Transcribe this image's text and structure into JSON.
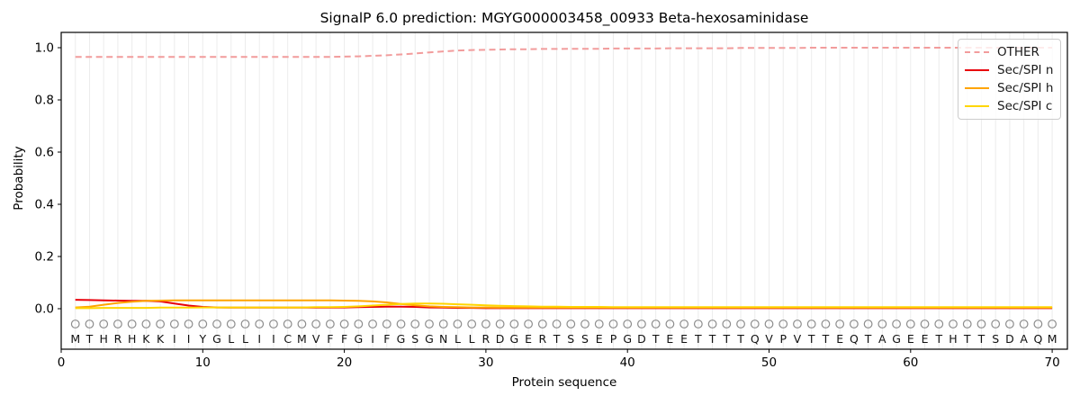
{
  "chart_data": {
    "type": "line",
    "title": "SignalP 6.0 prediction: MGYG000003458_00933 Beta-hexosaminidase",
    "xlabel": "Protein sequence",
    "ylabel": "Probability",
    "xticks": [
      0,
      10,
      20,
      30,
      40,
      50,
      60,
      70
    ],
    "yticks": [
      0.0,
      0.2,
      0.4,
      0.6,
      0.8,
      1.0
    ],
    "xlim": [
      0,
      71
    ],
    "ylim": [
      -0.155,
      1.06
    ],
    "grid": "vertical line per residue, light gray",
    "legend_position": "upper right",
    "sequence": "MTHRHKKIIYGLLIICMVFFGIFGSGNLLRDGERTSSEPGDTEETTTTQVPVTTEQTAGEETHTTSDAQM",
    "marker_row_symbol": "open-circle",
    "marker_row_color": "#8c8c8c",
    "x_positions_start": 1,
    "series": [
      {
        "name": "OTHER",
        "color": "#f29c9c",
        "style": "dashed",
        "values": [
          0.965,
          0.965,
          0.965,
          0.965,
          0.965,
          0.965,
          0.965,
          0.965,
          0.965,
          0.965,
          0.965,
          0.965,
          0.965,
          0.965,
          0.965,
          0.965,
          0.965,
          0.965,
          0.965,
          0.966,
          0.967,
          0.969,
          0.971,
          0.974,
          0.978,
          0.982,
          0.986,
          0.989,
          0.991,
          0.992,
          0.993,
          0.994,
          0.994,
          0.995,
          0.995,
          0.996,
          0.996,
          0.996,
          0.997,
          0.997,
          0.997,
          0.997,
          0.998,
          0.998,
          0.998,
          0.998,
          0.998,
          0.999,
          0.999,
          0.999,
          0.999,
          0.999,
          1.0,
          1.0,
          1.0,
          1.0,
          1.0,
          1.0,
          1.0,
          1.0,
          1.0,
          1.0,
          1.0,
          1.0,
          1.0,
          1.0,
          1.0,
          1.0,
          1.0,
          1.0
        ]
      },
      {
        "name": "Sec/SPI n",
        "color": "#e8000b",
        "style": "solid",
        "values": [
          0.034,
          0.033,
          0.032,
          0.031,
          0.03,
          0.03,
          0.028,
          0.02,
          0.012,
          0.007,
          0.005,
          0.004,
          0.004,
          0.004,
          0.004,
          0.004,
          0.004,
          0.004,
          0.004,
          0.005,
          0.006,
          0.007,
          0.008,
          0.008,
          0.007,
          0.005,
          0.004,
          0.003,
          0.003,
          0.002,
          0.002,
          0.002,
          0.002,
          0.002,
          0.002,
          0.002,
          0.002,
          0.002,
          0.002,
          0.002,
          0.002,
          0.002,
          0.002,
          0.002,
          0.002,
          0.002,
          0.002,
          0.002,
          0.002,
          0.002,
          0.002,
          0.002,
          0.002,
          0.002,
          0.002,
          0.002,
          0.002,
          0.002,
          0.002,
          0.002,
          0.002,
          0.002,
          0.002,
          0.002,
          0.002,
          0.002,
          0.002,
          0.002,
          0.002,
          0.002
        ]
      },
      {
        "name": "Sec/SPI h",
        "color": "#ffa400",
        "style": "solid",
        "values": [
          0.005,
          0.008,
          0.015,
          0.022,
          0.027,
          0.03,
          0.031,
          0.032,
          0.032,
          0.032,
          0.032,
          0.032,
          0.032,
          0.032,
          0.032,
          0.032,
          0.032,
          0.032,
          0.032,
          0.031,
          0.03,
          0.028,
          0.024,
          0.018,
          0.013,
          0.009,
          0.007,
          0.006,
          0.005,
          0.005,
          0.004,
          0.004,
          0.004,
          0.004,
          0.004,
          0.004,
          0.004,
          0.004,
          0.004,
          0.004,
          0.004,
          0.004,
          0.004,
          0.004,
          0.004,
          0.004,
          0.004,
          0.004,
          0.004,
          0.004,
          0.004,
          0.004,
          0.004,
          0.004,
          0.004,
          0.004,
          0.004,
          0.004,
          0.004,
          0.004,
          0.004,
          0.004,
          0.004,
          0.004,
          0.004,
          0.004,
          0.004,
          0.004,
          0.004,
          0.004
        ]
      },
      {
        "name": "Sec/SPI c",
        "color": "#ffd600",
        "style": "solid",
        "values": [
          0.002,
          0.002,
          0.003,
          0.003,
          0.003,
          0.003,
          0.004,
          0.004,
          0.004,
          0.005,
          0.005,
          0.005,
          0.005,
          0.005,
          0.005,
          0.005,
          0.005,
          0.006,
          0.006,
          0.007,
          0.009,
          0.012,
          0.015,
          0.018,
          0.02,
          0.02,
          0.019,
          0.017,
          0.015,
          0.013,
          0.011,
          0.01,
          0.009,
          0.008,
          0.008,
          0.007,
          0.007,
          0.007,
          0.006,
          0.006,
          0.006,
          0.006,
          0.006,
          0.006,
          0.006,
          0.006,
          0.006,
          0.006,
          0.006,
          0.006,
          0.006,
          0.006,
          0.006,
          0.006,
          0.006,
          0.006,
          0.006,
          0.006,
          0.006,
          0.006,
          0.006,
          0.006,
          0.006,
          0.006,
          0.006,
          0.006,
          0.006,
          0.006,
          0.006,
          0.006
        ]
      }
    ]
  }
}
